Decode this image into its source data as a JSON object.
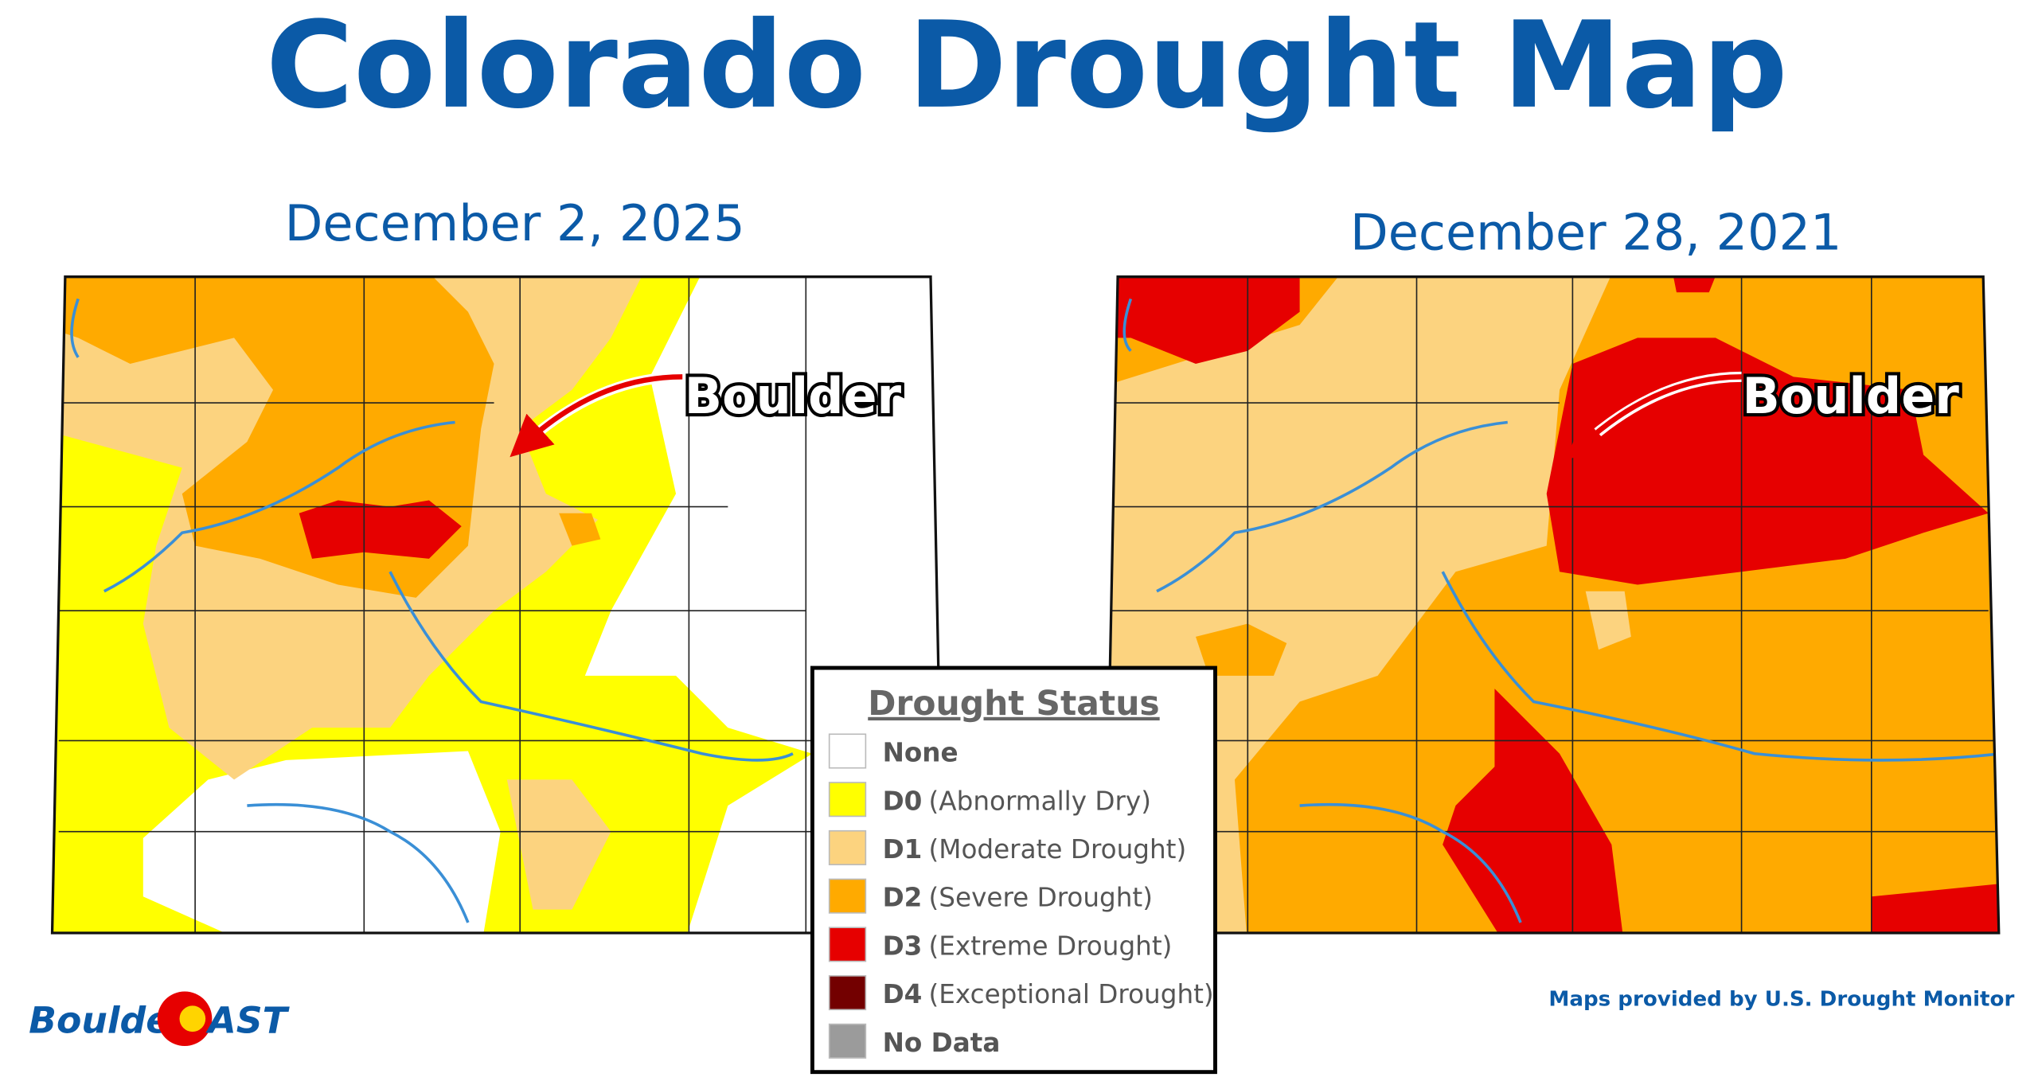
{
  "header": {
    "title": "Colorado Drought Map"
  },
  "maps": [
    {
      "date": "December 2, 2025",
      "annotation": "Boulder"
    },
    {
      "date": "December 28, 2021",
      "annotation": "Boulder"
    }
  ],
  "legend": {
    "title": "Drought Status",
    "items": [
      {
        "code": "None",
        "color": "#ffffff"
      },
      {
        "code": "D0",
        "description": "(Abnormally Dry)",
        "color": "#ffff00"
      },
      {
        "code": "D1",
        "description": "(Moderate Drought)",
        "color": "#fcd37f"
      },
      {
        "code": "D2",
        "description": "(Severe Drought)",
        "color": "#ffaa00"
      },
      {
        "code": "D3",
        "description": "(Extreme Drought)",
        "color": "#e60000"
      },
      {
        "code": "D4",
        "description": "(Exceptional Drought)",
        "color": "#730000"
      },
      {
        "code": "No Data",
        "color": "#9b9b9b"
      }
    ]
  },
  "footer": {
    "logo_left": "Boulder",
    "logo_right": "AST",
    "credit": "Maps provided by U.S. Drought Monitor"
  }
}
